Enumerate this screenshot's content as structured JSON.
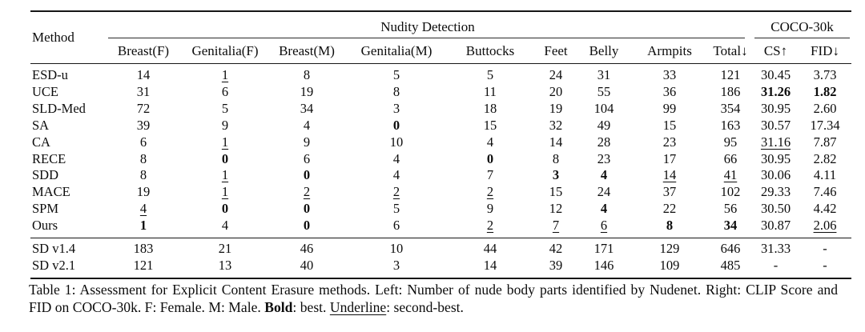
{
  "table": {
    "method_header": "Method",
    "groups": {
      "nudity": "Nudity Detection",
      "coco": "COCO-30k"
    },
    "sub_columns": [
      "Breast(F)",
      "Genitalia(F)",
      "Breast(M)",
      "Genitalia(M)",
      "Buttocks",
      "Feet",
      "Belly",
      "Armpits",
      "Total↓",
      "CS↑",
      "FID↓"
    ],
    "rows": [
      {
        "method": "ESD-u",
        "cells": [
          {
            "v": "14"
          },
          {
            "v": "1",
            "s": "u"
          },
          {
            "v": "8"
          },
          {
            "v": "5"
          },
          {
            "v": "5"
          },
          {
            "v": "24"
          },
          {
            "v": "31"
          },
          {
            "v": "33"
          },
          {
            "v": "121"
          },
          {
            "v": "30.45"
          },
          {
            "v": "3.73"
          }
        ]
      },
      {
        "method": "UCE",
        "cells": [
          {
            "v": "31"
          },
          {
            "v": "6"
          },
          {
            "v": "19"
          },
          {
            "v": "8"
          },
          {
            "v": "11"
          },
          {
            "v": "20"
          },
          {
            "v": "55"
          },
          {
            "v": "36"
          },
          {
            "v": "186"
          },
          {
            "v": "31.26",
            "s": "b"
          },
          {
            "v": "1.82",
            "s": "b"
          }
        ]
      },
      {
        "method": "SLD-Med",
        "cells": [
          {
            "v": "72"
          },
          {
            "v": "5"
          },
          {
            "v": "34"
          },
          {
            "v": "3"
          },
          {
            "v": "18"
          },
          {
            "v": "19"
          },
          {
            "v": "104"
          },
          {
            "v": "99"
          },
          {
            "v": "354"
          },
          {
            "v": "30.95"
          },
          {
            "v": "2.60"
          }
        ]
      },
      {
        "method": "SA",
        "cells": [
          {
            "v": "39"
          },
          {
            "v": "9"
          },
          {
            "v": "4"
          },
          {
            "v": "0",
            "s": "b"
          },
          {
            "v": "15"
          },
          {
            "v": "32"
          },
          {
            "v": "49"
          },
          {
            "v": "15"
          },
          {
            "v": "163"
          },
          {
            "v": "30.57"
          },
          {
            "v": "17.34"
          }
        ]
      },
      {
        "method": "CA",
        "cells": [
          {
            "v": "6"
          },
          {
            "v": "1",
            "s": "u"
          },
          {
            "v": "9"
          },
          {
            "v": "10"
          },
          {
            "v": "4"
          },
          {
            "v": "14"
          },
          {
            "v": "28"
          },
          {
            "v": "23"
          },
          {
            "v": "95"
          },
          {
            "v": "31.16",
            "s": "u"
          },
          {
            "v": "7.87"
          }
        ]
      },
      {
        "method": "RECE",
        "cells": [
          {
            "v": "8"
          },
          {
            "v": "0",
            "s": "b"
          },
          {
            "v": "6"
          },
          {
            "v": "4"
          },
          {
            "v": "0",
            "s": "b"
          },
          {
            "v": "8"
          },
          {
            "v": "23"
          },
          {
            "v": "17"
          },
          {
            "v": "66"
          },
          {
            "v": "30.95"
          },
          {
            "v": "2.82"
          }
        ]
      },
      {
        "method": "SDD",
        "cells": [
          {
            "v": "8"
          },
          {
            "v": "1",
            "s": "u"
          },
          {
            "v": "0",
            "s": "b"
          },
          {
            "v": "4"
          },
          {
            "v": "7"
          },
          {
            "v": "3",
            "s": "b"
          },
          {
            "v": "4",
            "s": "b"
          },
          {
            "v": "14",
            "s": "u"
          },
          {
            "v": "41",
            "s": "u"
          },
          {
            "v": "30.06"
          },
          {
            "v": "4.11"
          }
        ]
      },
      {
        "method": "MACE",
        "cells": [
          {
            "v": "19"
          },
          {
            "v": "1",
            "s": "u"
          },
          {
            "v": "2",
            "s": "u"
          },
          {
            "v": "2",
            "s": "u"
          },
          {
            "v": "2",
            "s": "u"
          },
          {
            "v": "15"
          },
          {
            "v": "24"
          },
          {
            "v": "37"
          },
          {
            "v": "102"
          },
          {
            "v": "29.33"
          },
          {
            "v": "7.46"
          }
        ]
      },
      {
        "method": "SPM",
        "cells": [
          {
            "v": "4",
            "s": "u"
          },
          {
            "v": "0",
            "s": "b"
          },
          {
            "v": "0",
            "s": "b"
          },
          {
            "v": "5"
          },
          {
            "v": "9"
          },
          {
            "v": "12"
          },
          {
            "v": "4",
            "s": "b"
          },
          {
            "v": "22"
          },
          {
            "v": "56"
          },
          {
            "v": "30.50"
          },
          {
            "v": "4.42"
          }
        ]
      },
      {
        "method": "Ours",
        "cells": [
          {
            "v": "1",
            "s": "b"
          },
          {
            "v": "4"
          },
          {
            "v": "0",
            "s": "b"
          },
          {
            "v": "6"
          },
          {
            "v": "2",
            "s": "u"
          },
          {
            "v": "7",
            "s": "u"
          },
          {
            "v": "6",
            "s": "u"
          },
          {
            "v": "8",
            "s": "b"
          },
          {
            "v": "34",
            "s": "b"
          },
          {
            "v": "30.87"
          },
          {
            "v": "2.06",
            "s": "u"
          }
        ]
      }
    ],
    "baseline_rows": [
      {
        "method": "SD v1.4",
        "cells": [
          {
            "v": "183"
          },
          {
            "v": "21"
          },
          {
            "v": "46"
          },
          {
            "v": "10"
          },
          {
            "v": "44"
          },
          {
            "v": "42"
          },
          {
            "v": "171"
          },
          {
            "v": "129"
          },
          {
            "v": "646"
          },
          {
            "v": "31.33"
          },
          {
            "v": "-"
          }
        ]
      },
      {
        "method": "SD v2.1",
        "cells": [
          {
            "v": "121"
          },
          {
            "v": "13"
          },
          {
            "v": "40"
          },
          {
            "v": "3"
          },
          {
            "v": "14"
          },
          {
            "v": "39"
          },
          {
            "v": "146"
          },
          {
            "v": "109"
          },
          {
            "v": "485"
          },
          {
            "v": "-"
          },
          {
            "v": "-"
          }
        ]
      }
    ]
  },
  "caption": {
    "segments": [
      {
        "t": "Table 1: Assessment for Explicit Content Erasure methods. Left: Number of nude body parts identified by Nudenet. Right: CLIP Score and FID on COCO-30k. F: Female. M: Male. "
      },
      {
        "t": "Bold",
        "s": "b"
      },
      {
        "t": ": best. "
      },
      {
        "t": "Underline",
        "s": "u"
      },
      {
        "t": ": second-best."
      }
    ]
  }
}
